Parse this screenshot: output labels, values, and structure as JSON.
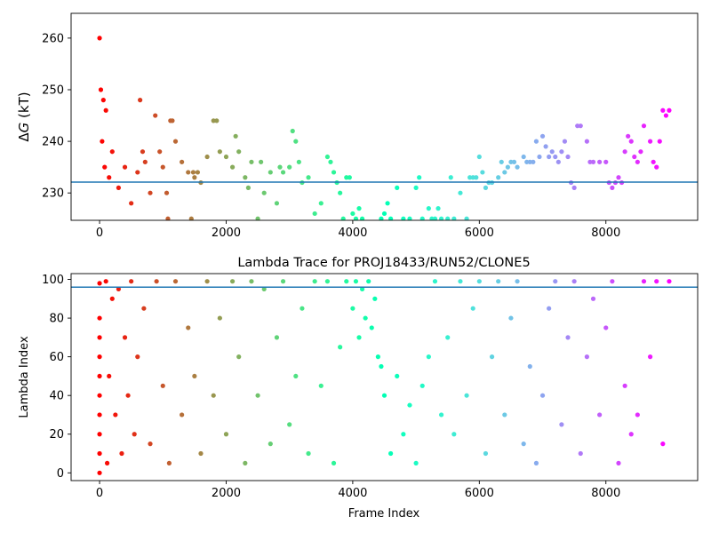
{
  "chart_data": [
    {
      "type": "scatter",
      "title": "",
      "xlabel": "",
      "ylabel_prefix": "Δ",
      "ylabel_var": "G",
      "ylabel_suffix": " (kT)",
      "xlim": [
        -450,
        9450
      ],
      "ylim": [
        224.7,
        264.8
      ],
      "xticks": [
        0,
        2000,
        4000,
        6000,
        8000
      ],
      "xtick_labels": [
        "0",
        "2000",
        "4000",
        "6000",
        "8000"
      ],
      "yticks": [
        230,
        240,
        250,
        260
      ],
      "ytick_labels": [
        "230",
        "240",
        "250",
        "260"
      ],
      "reference_line": 232.1,
      "grid": false,
      "colormap": "rainbow (red at frame 0 to violet at frame 9000)",
      "series": [
        {
          "x": [
            0,
            20,
            40,
            60,
            80,
            100,
            150,
            200,
            300,
            400,
            500,
            600,
            640,
            680,
            720,
            800,
            880,
            950,
            1000,
            1060,
            1080,
            1120,
            1150,
            1200,
            1300,
            1400,
            1450,
            1480,
            1500,
            1550,
            1600,
            1700,
            1800,
            1850,
            1900,
            2000,
            2100,
            2150,
            2200,
            2300,
            2350,
            2400,
            2500,
            2550,
            2600,
            2700,
            2800,
            2850,
            2900,
            3000,
            3050,
            3100,
            3150,
            3200,
            3300,
            3400,
            3500,
            3600,
            3650,
            3700,
            3750,
            3800,
            3850,
            3900,
            3950,
            4000,
            4050,
            4100,
            4150,
            4450,
            4500,
            4550,
            4600,
            4700,
            4800,
            4900,
            5000,
            5050,
            5100,
            5200,
            5250,
            5300,
            5350,
            5400,
            5500,
            5550,
            5600,
            5700,
            5800,
            5850,
            5900,
            5950,
            6000,
            6050,
            6100,
            6150,
            6200,
            6300,
            6350,
            6400,
            6450,
            6500,
            6550,
            6600,
            6700,
            6750,
            6800,
            6850,
            6900,
            6950,
            7000,
            7050,
            7100,
            7150,
            7200,
            7250,
            7300,
            7350,
            7400,
            7450,
            7500,
            7550,
            7600,
            7700,
            7750,
            7800,
            7900,
            8000,
            8050,
            8100,
            8150,
            8200,
            8250,
            8300,
            8350,
            8400,
            8450,
            8500,
            8550,
            8600,
            8700,
            8750,
            8800,
            8850,
            8900,
            8950,
            9000
          ],
          "y": [
            260,
            250,
            240,
            248,
            235,
            246,
            233,
            238,
            231,
            235,
            228,
            234,
            248,
            238,
            236,
            230,
            245,
            238,
            235,
            230,
            225,
            244,
            244,
            240,
            236,
            234,
            225,
            234,
            233,
            234,
            232,
            237,
            244,
            244,
            238,
            237,
            235,
            241,
            238,
            233,
            231,
            236,
            225,
            236,
            230,
            234,
            228,
            235,
            234,
            235,
            242,
            240,
            236,
            232,
            233,
            226,
            228,
            237,
            236,
            234,
            232,
            230,
            225,
            233,
            233,
            226,
            225,
            227,
            225,
            225,
            226,
            228,
            225,
            231,
            225,
            225,
            231,
            233,
            225,
            227,
            225,
            225,
            227,
            225,
            225,
            233,
            225,
            230,
            225,
            233,
            233,
            233,
            237,
            234,
            231,
            232,
            232,
            233,
            236,
            234,
            235,
            236,
            236,
            235,
            237,
            236,
            236,
            236,
            240,
            237,
            241,
            239,
            237,
            238,
            237,
            236,
            238,
            240,
            237,
            232,
            231,
            243,
            243,
            240,
            236,
            236,
            236,
            236,
            232,
            231,
            232,
            233,
            232,
            238,
            241,
            240,
            237,
            236,
            238,
            243,
            240,
            236,
            235,
            240,
            246,
            245,
            246
          ]
        }
      ]
    },
    {
      "type": "scatter",
      "title": "Lambda Trace for PROJ18433/RUN52/CLONE5",
      "xlabel": "Frame Index",
      "ylabel": "Lambda Index",
      "xlim": [
        -450,
        9450
      ],
      "ylim": [
        -4,
        103
      ],
      "xticks": [
        0,
        2000,
        4000,
        6000,
        8000
      ],
      "xtick_labels": [
        "0",
        "2000",
        "4000",
        "6000",
        "8000"
      ],
      "yticks": [
        0,
        20,
        40,
        60,
        80,
        100
      ],
      "ytick_labels": [
        "0",
        "20",
        "40",
        "60",
        "80",
        "100"
      ],
      "reference_line": 96,
      "grid": false,
      "colormap": "rainbow (red at frame 0 to violet at frame 9000)",
      "series": [
        {
          "x": [
            0,
            0,
            0,
            0,
            0,
            0,
            0,
            0,
            0,
            0,
            100,
            120,
            150,
            200,
            250,
            300,
            350,
            400,
            450,
            500,
            550,
            600,
            700,
            800,
            900,
            1000,
            1100,
            1200,
            1300,
            1400,
            1500,
            1600,
            1700,
            1800,
            1900,
            2000,
            2100,
            2200,
            2300,
            2400,
            2500,
            2600,
            2700,
            2800,
            2900,
            3000,
            3100,
            3200,
            3300,
            3400,
            3500,
            3600,
            3700,
            3800,
            3900,
            4000,
            4050,
            4100,
            4150,
            4200,
            4250,
            4300,
            4350,
            4400,
            4450,
            4500,
            4600,
            4700,
            4800,
            4900,
            5000,
            5100,
            5200,
            5300,
            5400,
            5500,
            5600,
            5700,
            5800,
            5900,
            6000,
            6100,
            6200,
            6300,
            6400,
            6500,
            6600,
            6700,
            6800,
            6900,
            7000,
            7100,
            7200,
            7300,
            7400,
            7500,
            7600,
            7700,
            7800,
            7900,
            8000,
            8100,
            8200,
            8300,
            8400,
            8500,
            8600,
            8700,
            8800,
            8900,
            9000
          ],
          "y": [
            0,
            10,
            20,
            30,
            40,
            50,
            60,
            70,
            80,
            98,
            99,
            5,
            50,
            90,
            30,
            95,
            10,
            70,
            40,
            99,
            20,
            60,
            85,
            15,
            99,
            45,
            5,
            99,
            30,
            75,
            50,
            10,
            99,
            40,
            80,
            20,
            99,
            60,
            5,
            99,
            40,
            95,
            15,
            70,
            99,
            25,
            50,
            85,
            10,
            99,
            45,
            99,
            5,
            65,
            99,
            85,
            99,
            70,
            95,
            80,
            99,
            75,
            90,
            60,
            55,
            40,
            10,
            50,
            20,
            35,
            5,
            45,
            60,
            99,
            30,
            70,
            20,
            99,
            40,
            85,
            99,
            10,
            60,
            99,
            30,
            80,
            99,
            15,
            55,
            5,
            40,
            85,
            99,
            25,
            70,
            99,
            10,
            60,
            90,
            30,
            75,
            99,
            5,
            45,
            20,
            30,
            99,
            60,
            99,
            15,
            99
          ]
        }
      ]
    }
  ]
}
